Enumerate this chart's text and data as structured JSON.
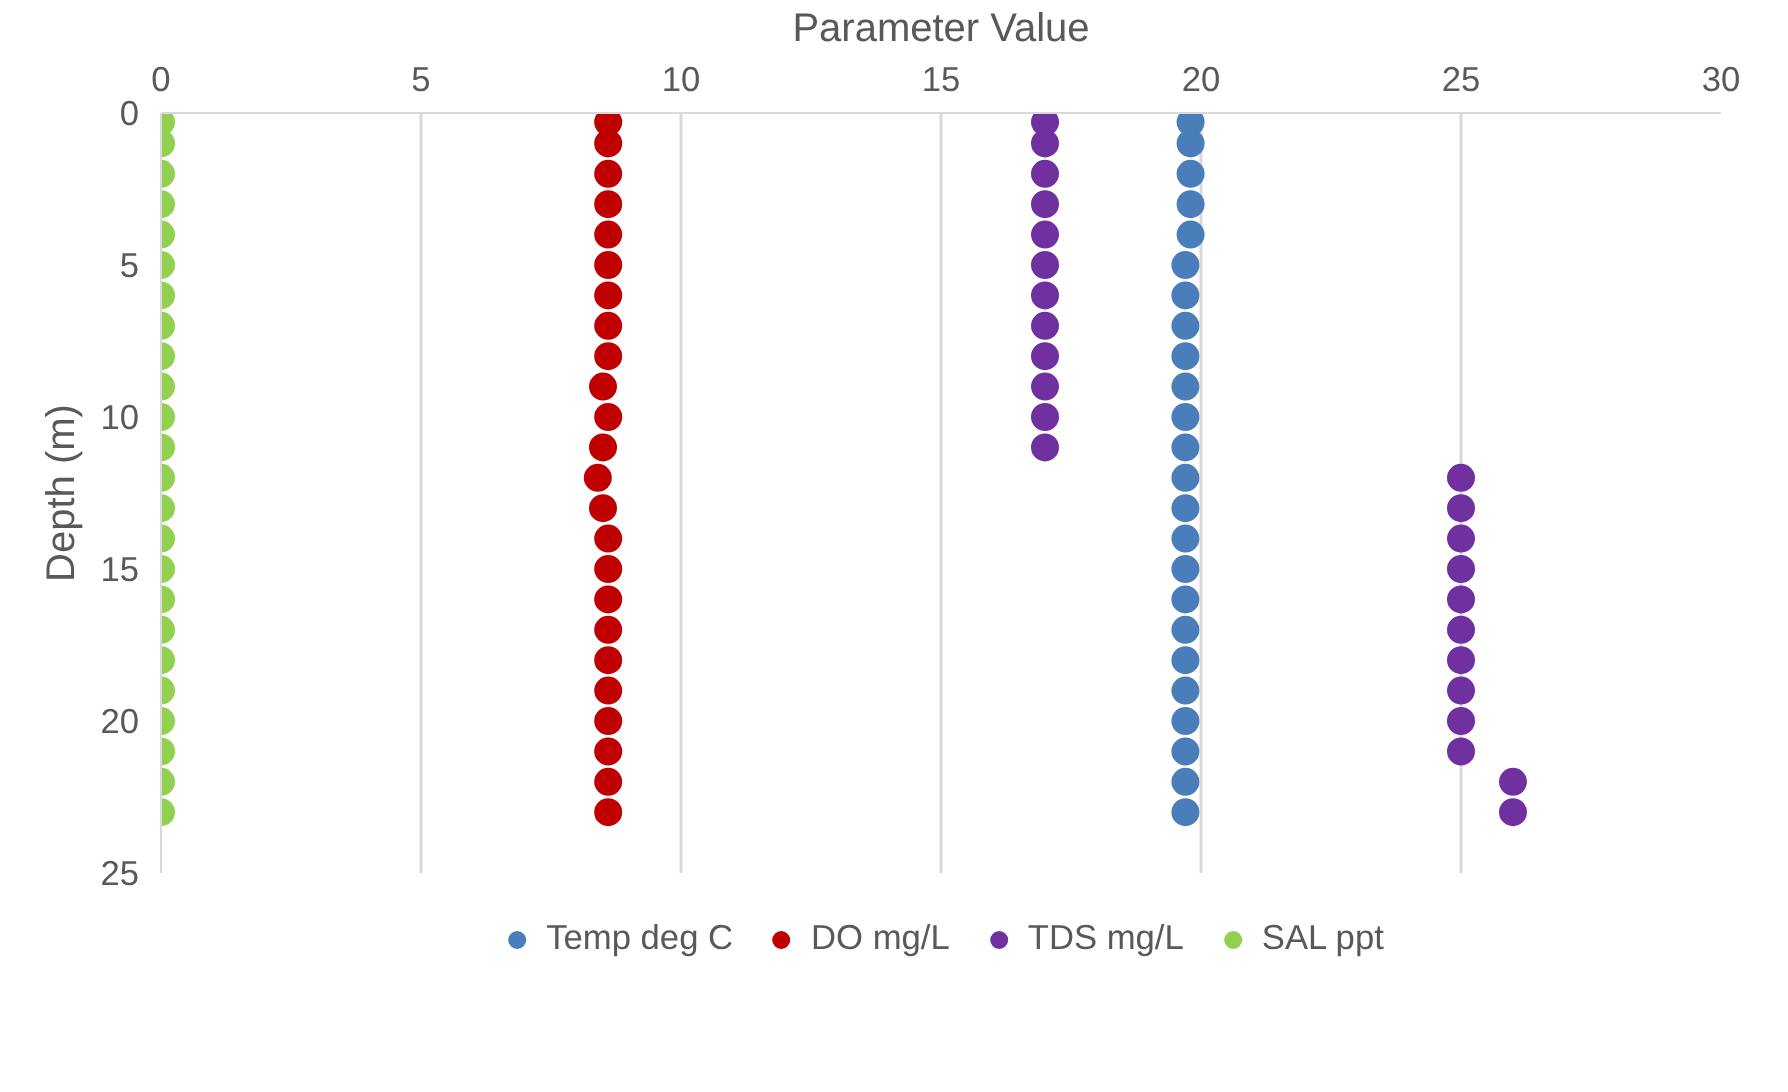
{
  "chart_data": {
    "type": "scatter",
    "xlabel": "Parameter Value",
    "ylabel": "Depth (m)",
    "xlim": [
      0,
      30
    ],
    "xticks": [
      0,
      5,
      10,
      15,
      20,
      25,
      30
    ],
    "ylim": [
      25,
      0
    ],
    "yticks": [
      0,
      5,
      10,
      15,
      20,
      25
    ],
    "grid": "x",
    "legend": "bottom",
    "marker": "circle",
    "series": [
      {
        "name": "Temp deg C",
        "color": "#4a7ebb",
        "values": [
          0.3,
          1,
          2,
          3,
          4,
          5,
          6,
          7,
          8,
          9,
          10,
          11,
          12,
          13,
          14,
          15,
          16,
          17,
          18,
          19,
          20,
          21,
          22,
          23
        ],
        "x": [
          19.8,
          19.8,
          19.8,
          19.8,
          19.8,
          19.7,
          19.7,
          19.7,
          19.7,
          19.7,
          19.7,
          19.7,
          19.7,
          19.7,
          19.7,
          19.7,
          19.7,
          19.7,
          19.7,
          19.7,
          19.7,
          19.7,
          19.7,
          19.7
        ]
      },
      {
        "name": "DO mg/L",
        "color": "#c00000",
        "values": [
          0.3,
          1,
          2,
          3,
          4,
          5,
          6,
          7,
          8,
          9,
          10,
          11,
          12,
          13,
          14,
          15,
          16,
          17,
          18,
          19,
          20,
          21,
          22,
          23
        ],
        "x": [
          8.6,
          8.6,
          8.6,
          8.6,
          8.6,
          8.6,
          8.6,
          8.6,
          8.6,
          8.5,
          8.6,
          8.5,
          8.4,
          8.5,
          8.6,
          8.6,
          8.6,
          8.6,
          8.6,
          8.6,
          8.6,
          8.6,
          8.6,
          8.6
        ]
      },
      {
        "name": "TDS mg/L",
        "color": "#7030a0",
        "values": [
          0.3,
          1,
          2,
          3,
          4,
          5,
          6,
          7,
          8,
          9,
          10,
          11,
          12,
          13,
          14,
          15,
          16,
          17,
          18,
          19,
          20,
          21,
          22,
          23
        ],
        "x": [
          17,
          17,
          17,
          17,
          17,
          17,
          17,
          17,
          17,
          17,
          17,
          17,
          25,
          25,
          25,
          25,
          25,
          25,
          25,
          25,
          25,
          25,
          26,
          26
        ]
      },
      {
        "name": "SAL ppt",
        "color": "#92d050",
        "values": [
          0.3,
          1,
          2,
          3,
          4,
          5,
          6,
          7,
          8,
          9,
          10,
          11,
          12,
          13,
          14,
          15,
          16,
          17,
          18,
          19,
          20,
          21,
          22,
          23
        ],
        "x": [
          0,
          0,
          0,
          0,
          0,
          0,
          0,
          0,
          0,
          0,
          0,
          0,
          0,
          0,
          0,
          0,
          0,
          0,
          0,
          0,
          0,
          0,
          0,
          0
        ]
      }
    ]
  }
}
